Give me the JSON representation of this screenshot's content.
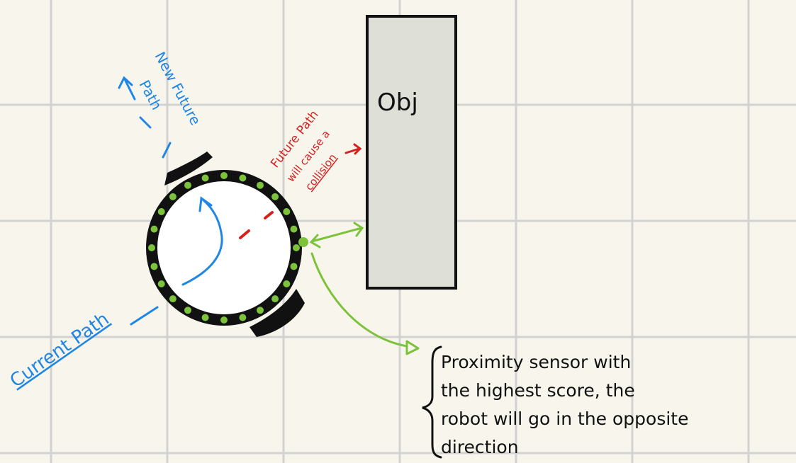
{
  "colors": {
    "background": "#f8f6ec",
    "grid": "#d2d2d2",
    "obstacle_fill": "#dedfd6",
    "ink": "#111111",
    "sensor": "#7cc23a",
    "blue": "#1f86e6",
    "red": "#d61f1f"
  },
  "labels": {
    "obstacle": "Obj",
    "new_future_path_line1": "New Future",
    "new_future_path_line2": "Path",
    "future_path_line1": "Future Path",
    "future_path_line2": "will cause a",
    "future_path_line3": "collision",
    "current_path": "Current Path",
    "note_line1": "Proximity sensor with",
    "note_line2": "the highest score, the",
    "note_line3": "robot will go in the opposite",
    "note_line4": "direction"
  }
}
